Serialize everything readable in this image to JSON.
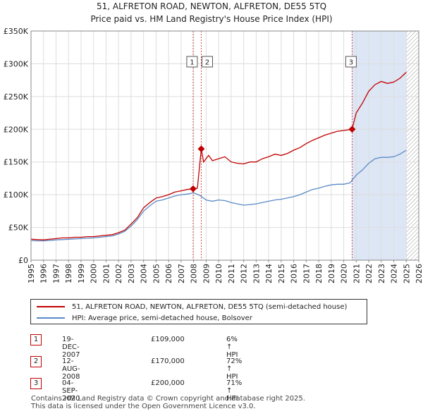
{
  "title": "51, ALFRETON ROAD, NEWTON, ALFRETON, DE55 5TQ",
  "subtitle": "Price paid vs. HM Land Registry's House Price Index (HPI)",
  "colors": {
    "property": "#c00000",
    "hpi": "#5a8ac6",
    "marker_line": "#c00000",
    "shade": "#dde6f5",
    "grid": "#dddddd",
    "hatch": "#999999"
  },
  "chart_data": {
    "type": "line",
    "xlim": [
      1995,
      2026
    ],
    "ylim": [
      0,
      350000
    ],
    "x_ticks": [
      "1995",
      "1996",
      "1997",
      "1998",
      "1999",
      "2000",
      "2001",
      "2002",
      "2003",
      "2004",
      "2005",
      "2006",
      "2007",
      "2008",
      "2009",
      "2010",
      "2011",
      "2012",
      "2013",
      "2014",
      "2015",
      "2016",
      "2017",
      "2018",
      "2019",
      "2020",
      "2021",
      "2022",
      "2023",
      "2024",
      "2025",
      "2026"
    ],
    "y_ticks": [
      {
        "value": 0,
        "label": "£0"
      },
      {
        "value": 50000,
        "label": "£50K"
      },
      {
        "value": 100000,
        "label": "£100K"
      },
      {
        "value": 150000,
        "label": "£150K"
      },
      {
        "value": 200000,
        "label": "£200K"
      },
      {
        "value": 250000,
        "label": "£250K"
      },
      {
        "value": 300000,
        "label": "£300K"
      },
      {
        "value": 350000,
        "label": "£350K"
      }
    ],
    "grid": true,
    "series": [
      {
        "name": "51, ALFRETON ROAD, NEWTON, ALFRETON, DE55 5TQ (semi-detached house)",
        "color": "#c00000",
        "points": [
          [
            1995.0,
            32000
          ],
          [
            1995.5,
            31500
          ],
          [
            1996.0,
            31000
          ],
          [
            1996.5,
            32000
          ],
          [
            1997.0,
            33000
          ],
          [
            1997.5,
            34000
          ],
          [
            1998.0,
            34000
          ],
          [
            1998.5,
            35000
          ],
          [
            1999.0,
            35000
          ],
          [
            1999.5,
            36000
          ],
          [
            2000.0,
            36000
          ],
          [
            2000.5,
            37000
          ],
          [
            2001.0,
            38000
          ],
          [
            2001.5,
            39000
          ],
          [
            2002.0,
            42000
          ],
          [
            2002.5,
            46000
          ],
          [
            2003.0,
            55000
          ],
          [
            2003.5,
            65000
          ],
          [
            2004.0,
            80000
          ],
          [
            2004.5,
            88000
          ],
          [
            2005.0,
            95000
          ],
          [
            2005.5,
            97000
          ],
          [
            2006.0,
            100000
          ],
          [
            2006.5,
            104000
          ],
          [
            2007.0,
            106000
          ],
          [
            2007.5,
            108000
          ],
          [
            2007.96,
            109000
          ],
          [
            2008.3,
            110000
          ],
          [
            2008.61,
            170000
          ],
          [
            2008.8,
            150000
          ],
          [
            2009.2,
            160000
          ],
          [
            2009.5,
            152000
          ],
          [
            2010.0,
            155000
          ],
          [
            2010.5,
            158000
          ],
          [
            2011.0,
            150000
          ],
          [
            2011.5,
            148000
          ],
          [
            2012.0,
            147000
          ],
          [
            2012.5,
            150000
          ],
          [
            2013.0,
            150000
          ],
          [
            2013.5,
            155000
          ],
          [
            2014.0,
            158000
          ],
          [
            2014.5,
            162000
          ],
          [
            2015.0,
            160000
          ],
          [
            2015.5,
            163000
          ],
          [
            2016.0,
            168000
          ],
          [
            2016.5,
            172000
          ],
          [
            2017.0,
            178000
          ],
          [
            2017.5,
            183000
          ],
          [
            2018.0,
            187000
          ],
          [
            2018.5,
            191000
          ],
          [
            2019.0,
            194000
          ],
          [
            2019.5,
            197000
          ],
          [
            2020.0,
            198000
          ],
          [
            2020.67,
            200000
          ],
          [
            2021.0,
            225000
          ],
          [
            2021.5,
            240000
          ],
          [
            2022.0,
            258000
          ],
          [
            2022.5,
            268000
          ],
          [
            2023.0,
            273000
          ],
          [
            2023.5,
            270000
          ],
          [
            2024.0,
            272000
          ],
          [
            2024.5,
            278000
          ],
          [
            2025.0,
            287000
          ]
        ]
      },
      {
        "name": "HPI: Average price, semi-detached house, Bolsover",
        "color": "#5a8ac6",
        "points": [
          [
            1995.0,
            30000
          ],
          [
            1995.5,
            29500
          ],
          [
            1996.0,
            29500
          ],
          [
            1996.5,
            30000
          ],
          [
            1997.0,
            31000
          ],
          [
            1997.5,
            31500
          ],
          [
            1998.0,
            32000
          ],
          [
            1998.5,
            32500
          ],
          [
            1999.0,
            33000
          ],
          [
            1999.5,
            33500
          ],
          [
            2000.0,
            34000
          ],
          [
            2000.5,
            35000
          ],
          [
            2001.0,
            36000
          ],
          [
            2001.5,
            37000
          ],
          [
            2002.0,
            40000
          ],
          [
            2002.5,
            44000
          ],
          [
            2003.0,
            52000
          ],
          [
            2003.5,
            62000
          ],
          [
            2004.0,
            75000
          ],
          [
            2004.5,
            83000
          ],
          [
            2005.0,
            90000
          ],
          [
            2005.5,
            92000
          ],
          [
            2006.0,
            95000
          ],
          [
            2006.5,
            98000
          ],
          [
            2007.0,
            100000
          ],
          [
            2007.5,
            101000
          ],
          [
            2008.0,
            103000
          ],
          [
            2008.5,
            99000
          ],
          [
            2009.0,
            92000
          ],
          [
            2009.5,
            90000
          ],
          [
            2010.0,
            92000
          ],
          [
            2010.5,
            91000
          ],
          [
            2011.0,
            88000
          ],
          [
            2011.5,
            86000
          ],
          [
            2012.0,
            84000
          ],
          [
            2012.5,
            85000
          ],
          [
            2013.0,
            86000
          ],
          [
            2013.5,
            88000
          ],
          [
            2014.0,
            90000
          ],
          [
            2014.5,
            92000
          ],
          [
            2015.0,
            93000
          ],
          [
            2015.5,
            95000
          ],
          [
            2016.0,
            97000
          ],
          [
            2016.5,
            100000
          ],
          [
            2017.0,
            104000
          ],
          [
            2017.5,
            108000
          ],
          [
            2018.0,
            110000
          ],
          [
            2018.5,
            113000
          ],
          [
            2019.0,
            115000
          ],
          [
            2019.5,
            116000
          ],
          [
            2020.0,
            116000
          ],
          [
            2020.5,
            118000
          ],
          [
            2021.0,
            130000
          ],
          [
            2021.5,
            138000
          ],
          [
            2022.0,
            148000
          ],
          [
            2022.5,
            155000
          ],
          [
            2023.0,
            157000
          ],
          [
            2023.5,
            157000
          ],
          [
            2024.0,
            158000
          ],
          [
            2024.5,
            162000
          ],
          [
            2025.0,
            168000
          ]
        ]
      }
    ],
    "sales": [
      {
        "label": "1",
        "x": 2007.96,
        "y": 109000
      },
      {
        "label": "2",
        "x": 2008.61,
        "y": 170000
      },
      {
        "label": "3",
        "x": 2020.67,
        "y": 200000
      }
    ],
    "shaded_from": 2020.67,
    "hatched_from": 2025.0
  },
  "transactions": [
    {
      "badge": "1",
      "date": "19-DEC-2007",
      "price": "£109,000",
      "hpi": "6% ↑ HPI"
    },
    {
      "badge": "2",
      "date": "12-AUG-2008",
      "price": "£170,000",
      "hpi": "72% ↑ HPI"
    },
    {
      "badge": "3",
      "date": "04-SEP-2020",
      "price": "£200,000",
      "hpi": "71% ↑ HPI"
    }
  ],
  "footer": {
    "line1": "Contains HM Land Registry data © Crown copyright and database right 2025.",
    "line2": "This data is licensed under the Open Government Licence v3.0."
  }
}
